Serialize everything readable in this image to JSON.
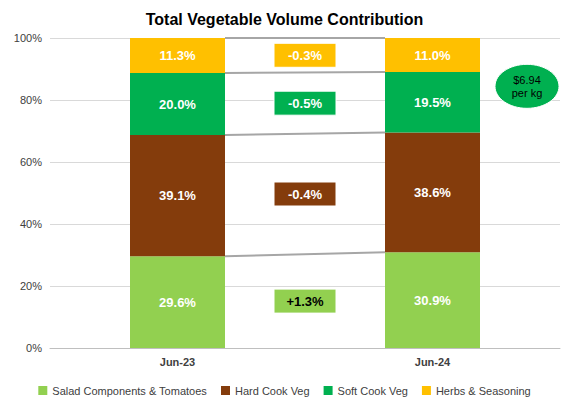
{
  "chart_data": {
    "type": "bar",
    "title": "Total Vegetable Volume Contribution",
    "categories": [
      "Jun-23",
      "Jun-24"
    ],
    "stacked": true,
    "data_labels": true,
    "grid": true,
    "legend": "bottom",
    "ylim": [
      0,
      100
    ],
    "yticks": [
      {
        "value": 0,
        "label": "0%"
      },
      {
        "value": 20,
        "label": "20%"
      },
      {
        "value": 40,
        "label": "40%"
      },
      {
        "value": 60,
        "label": "60%"
      },
      {
        "value": 80,
        "label": "80%"
      },
      {
        "value": 100,
        "label": "100%"
      }
    ],
    "series": [
      {
        "name": "Salad Components & Tomatoes",
        "color": "#92d050",
        "values": [
          29.6,
          30.9
        ],
        "value_labels": [
          "29.6%",
          "30.9%"
        ],
        "change": "+1.3%"
      },
      {
        "name": "Hard Cook Veg",
        "color": "#843c0c",
        "values": [
          39.1,
          38.6
        ],
        "value_labels": [
          "39.1%",
          "38.6%"
        ],
        "change": "-0.4%"
      },
      {
        "name": "Soft Cook Veg",
        "color": "#00b050",
        "values": [
          20.0,
          19.5
        ],
        "value_labels": [
          "20.0%",
          "19.5%"
        ],
        "change": "-0.5%"
      },
      {
        "name": "Herbs & Seasoning",
        "color": "#ffc000",
        "values": [
          11.3,
          11.0
        ],
        "value_labels": [
          "11.3%",
          "11.0%"
        ],
        "change": "-0.3%"
      }
    ],
    "annotations": [
      "$6.94 per kg"
    ]
  }
}
